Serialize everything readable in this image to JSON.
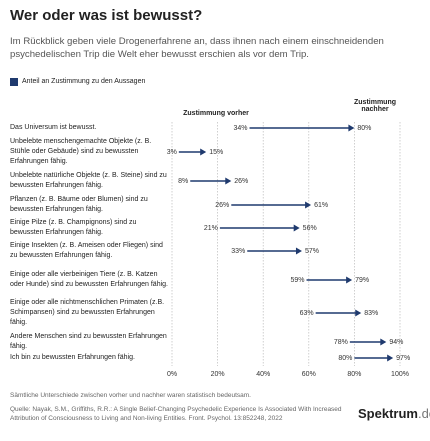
{
  "chart_data": {
    "type": "arrow",
    "title": "Wer oder was ist bewusst?",
    "subtitle": "Im Rückblick geben viele Drogenerfahrene an, dass ihnen nach einem einschneidenden psychedelischen Trip die Welt eher bewusst erschien als vor dem Trip.",
    "legend_label": "Anteil an Zustimmung zu den Aussagen",
    "color": "#1f3a6e",
    "categories": [
      "Das Universum ist bewusst.",
      "Unbelebte menschengemachte Objekte (z. B. Stühle oder Gebäude) sind zu bewussten Erfahrungen fähig.",
      "Unbelebte natürliche Objekte (z. B. Steine) sind zu bewussten Erfahrungen fähig.",
      "Pflanzen (z. B. Bäume oder Blumen) sind zu bewussten Erfahrungen fähig.",
      "Einige Pilze (z. B. Champignons) sind zu bewussten Erfahrungen fähig.",
      "Einige Insekten (z. B. Ameisen oder Fliegen) sind zu bewussten Erfahrungen fähig.",
      "Einige oder alle vierbeinigen Tiere (z. B. Katzen oder Hunde) sind zu bewussten Erfahrungen fähig.",
      "Einige oder alle nichtmenschlichen Primaten (z.B. Schimpansen) sind zu bewussten Erfahrungen fähig.",
      "Andere Menschen sind zu bewussten Erfahrungen fähig.",
      "Ich bin zu bewussten Erfahrungen fähig."
    ],
    "series": [
      {
        "name": "Zustimmung vorher",
        "values": [
          34,
          3,
          8,
          26,
          21,
          33,
          59,
          63,
          78,
          80
        ],
        "value_labels": [
          "34%",
          "3%",
          "8%",
          "26%",
          "21%",
          "33%",
          "59%",
          "63%",
          "78%",
          "80%"
        ]
      },
      {
        "name": "Zustimmung nachher",
        "values": [
          80,
          15,
          26,
          61,
          56,
          57,
          79,
          83,
          94,
          97
        ],
        "value_labels": [
          "80%",
          "15%",
          "26%",
          "61%",
          "56%",
          "57%",
          "79%",
          "83%",
          "94%",
          "97%"
        ]
      }
    ],
    "xlim": [
      0,
      100
    ],
    "xticks": [
      {
        "value": 0,
        "label": "0%"
      },
      {
        "value": 20,
        "label": "20%"
      },
      {
        "value": 40,
        "label": "40%"
      },
      {
        "value": 60,
        "label": "60%"
      },
      {
        "value": 80,
        "label": "80%"
      },
      {
        "value": 100,
        "label": "100%"
      }
    ],
    "grid": true,
    "note": "Sämtliche Unterschiede zwischen vorher und nachher waren statistisch bedeutsam.",
    "source": "Quelle: Nayak, S.M., Griffiths, R.R.: A Single Belief-Changing Psychedelic Experience Is Associated With Increased Attribution of Consciousness to Living and Non-living Entities. Front. Psychol. 13:852248, 2022",
    "brand": {
      "name": "Spektrum",
      "suffix": ".de"
    }
  }
}
